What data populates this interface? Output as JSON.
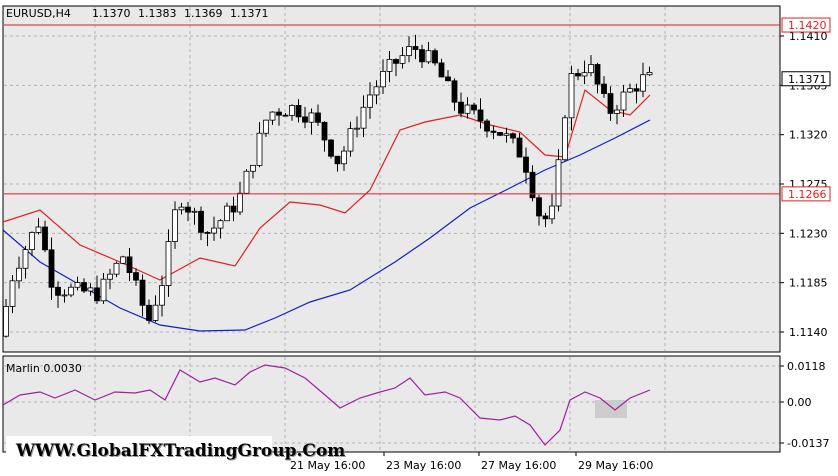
{
  "header": {
    "symbol": "EURUSD,H4",
    "open": "1.1370",
    "high": "1.1383",
    "low": "1.1369",
    "close": "1.1371"
  },
  "price_axis": {
    "ticks": [
      "1.1410",
      "1.1365",
      "1.1320",
      "1.1275",
      "1.1230",
      "1.1185",
      "1.1140"
    ],
    "levels": [
      {
        "label": "1.1420",
        "color": "#e02020"
      },
      {
        "label": "1.1266",
        "color": "#e02020"
      },
      {
        "label": "1.1371",
        "color": "#000000"
      }
    ]
  },
  "indicator": {
    "name": "Marlin 0.0030",
    "ticks": [
      "0.0118",
      "0.00",
      "-0.0137"
    ],
    "color": "#a020a0"
  },
  "time_axis": [
    "21 May 16:00",
    "23 May 16:00",
    "27 May 16:00",
    "29 May 16:00"
  ],
  "watermark": "WWW.GlobalFXTradingGroup.Com",
  "colors": {
    "background": "#e9e9e9",
    "grid": "#b4b4b4",
    "bull_body": "#ffffff",
    "bear_body": "#000000",
    "fast_ma": "#e02020",
    "slow_ma": "#1020c0",
    "level_line": "#e02020"
  }
}
